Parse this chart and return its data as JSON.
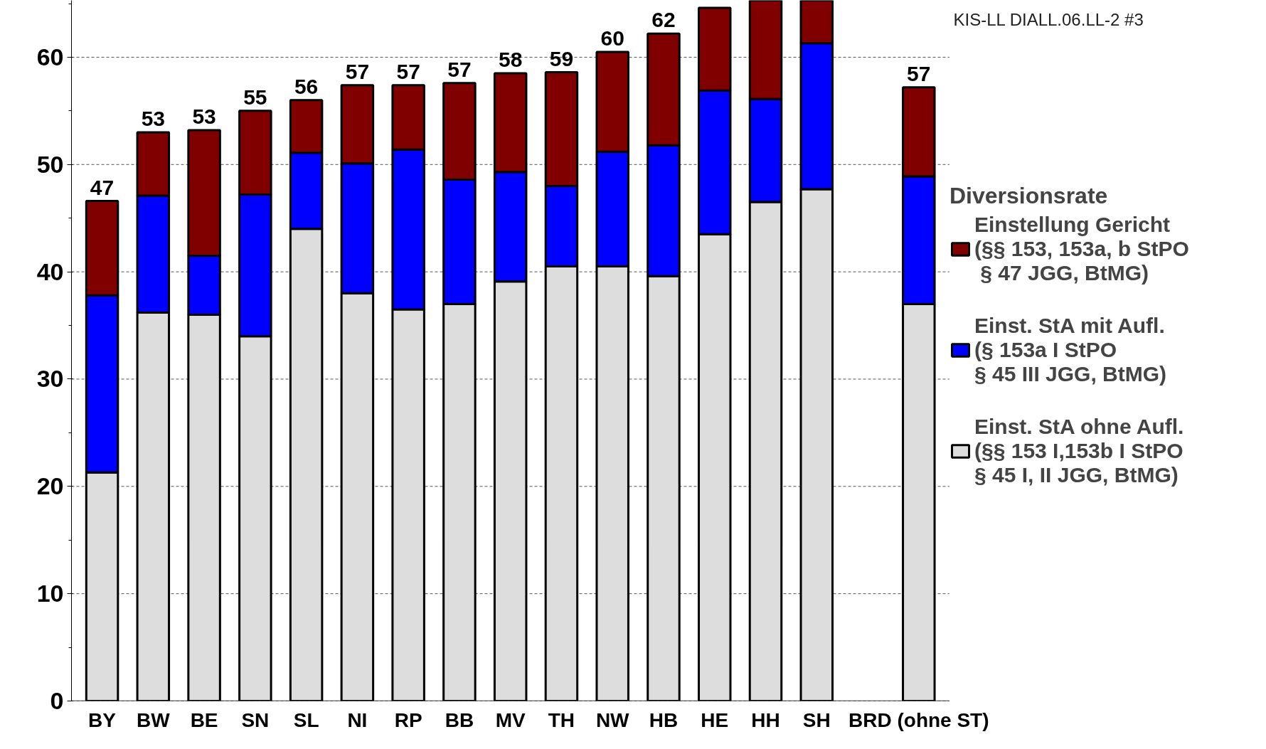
{
  "chart_data": {
    "type": "bar",
    "stacked": true,
    "categories": [
      "BY",
      "BW",
      "BE",
      "SN",
      "SL",
      "NI",
      "RP",
      "BB",
      "MV",
      "TH",
      "NW",
      "HB",
      "HE",
      "HH",
      "SH",
      null,
      "BRD (ohne ST)"
    ],
    "series": [
      {
        "name": "Einst. StA ohne Aufl.\n(§§ 153 I,153b I StPO\n§ 45 I, II JGG, BtMG)",
        "color": "#dddddd",
        "values": [
          21.3,
          36.2,
          36.0,
          34.0,
          44.0,
          38.0,
          36.5,
          37.0,
          39.1,
          40.5,
          40.5,
          39.6,
          43.5,
          46.5,
          47.7,
          null,
          37.0
        ]
      },
      {
        "name": "Einst. StA mit Aufl.\n(§ 153a I StPO\n§ 45 III JGG, BtMG)",
        "color": "#0000ff",
        "values": [
          16.5,
          10.9,
          5.5,
          13.2,
          7.1,
          12.1,
          14.9,
          11.6,
          10.2,
          7.5,
          10.7,
          12.2,
          13.4,
          9.6,
          13.6,
          null,
          11.9
        ]
      },
      {
        "name": "Einstellung Gericht\n(§§ 153, 153a, b StPO\n § 47 JGG, BtMG)",
        "color": "#800000",
        "values": [
          8.8,
          5.9,
          11.7,
          7.8,
          4.9,
          7.3,
          6.0,
          9.0,
          9.2,
          10.6,
          9.3,
          10.4,
          7.7,
          9.2,
          4.0,
          null,
          8.3
        ]
      }
    ],
    "totals": [
      "47",
      "53",
      "53",
      "55",
      "56",
      "57",
      "57",
      "57",
      "58",
      "59",
      "60",
      "62",
      null,
      null,
      null,
      null,
      "57"
    ],
    "legend_title": "Diversionsrate",
    "legend": "right",
    "ylim": [
      0,
      65.3
    ],
    "yticks": [
      0,
      10,
      20,
      30,
      40,
      50,
      60
    ],
    "grid": "y",
    "annotations": [
      "KIS-LL DIALL.06.LL-2 #3"
    ]
  }
}
